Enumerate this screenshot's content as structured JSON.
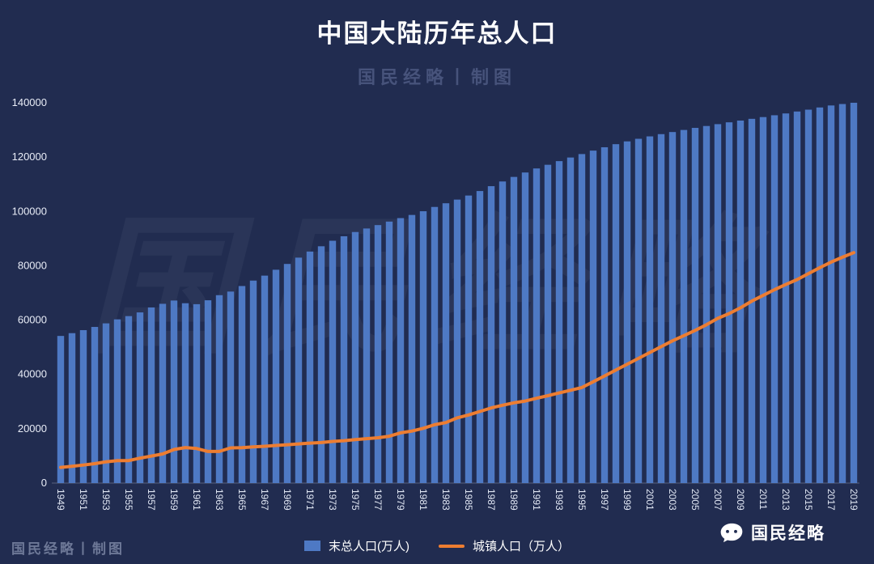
{
  "title": "中国大陆历年总人口",
  "subtitle": "国民经略丨制图",
  "watermark": {
    "big": "国民经略",
    "bottom_left": "国民经略丨制图"
  },
  "footer": {
    "brand": "国民经略"
  },
  "legend": {
    "bar_label": "末总人口(万人)",
    "line_label": "城镇人口（万人）"
  },
  "colors": {
    "background": "#212c50",
    "bar": "#4e79c4",
    "line": "#ed7d31",
    "text": "#ffffff",
    "subtitle": "#47537b"
  },
  "chart_data": {
    "type": "bar",
    "title": "中国大陆历年总人口",
    "xlabel": "",
    "ylabel": "",
    "ylim": [
      0,
      140000
    ],
    "yticks": [
      0,
      20000,
      40000,
      60000,
      80000,
      100000,
      120000,
      140000
    ],
    "grid": false,
    "legend_position": "bottom",
    "x": [
      1949,
      1950,
      1951,
      1952,
      1953,
      1954,
      1955,
      1956,
      1957,
      1958,
      1959,
      1960,
      1961,
      1962,
      1963,
      1964,
      1965,
      1966,
      1967,
      1968,
      1969,
      1970,
      1971,
      1972,
      1973,
      1974,
      1975,
      1976,
      1977,
      1978,
      1979,
      1980,
      1981,
      1982,
      1983,
      1984,
      1985,
      1986,
      1987,
      1988,
      1989,
      1990,
      1991,
      1992,
      1993,
      1994,
      1995,
      1996,
      1997,
      1998,
      1999,
      2000,
      2001,
      2002,
      2003,
      2004,
      2005,
      2006,
      2007,
      2008,
      2009,
      2010,
      2011,
      2012,
      2013,
      2014,
      2015,
      2016,
      2017,
      2018,
      2019
    ],
    "series": [
      {
        "name": "末总人口(万人)",
        "type": "bar",
        "values": [
          54167,
          55196,
          56300,
          57482,
          58796,
          60266,
          61465,
          62828,
          64653,
          65994,
          67207,
          66207,
          65859,
          67295,
          69172,
          70499,
          72538,
          74542,
          76368,
          78534,
          80671,
          82992,
          85229,
          87177,
          89211,
          90859,
          92420,
          93717,
          94974,
          96259,
          97542,
          98705,
          100072,
          101654,
          103008,
          104357,
          105851,
          107507,
          109300,
          111026,
          112704,
          114333,
          115823,
          117171,
          118517,
          119850,
          121121,
          122389,
          123626,
          124761,
          125786,
          126743,
          127627,
          128453,
          129227,
          129988,
          130756,
          131448,
          132129,
          132802,
          133450,
          134091,
          134735,
          135404,
          136072,
          136782,
          137462,
          138271,
          139008,
          139538,
          140005
        ]
      },
      {
        "name": "城镇人口（万人）",
        "type": "line",
        "values": [
          5765,
          6169,
          6632,
          7163,
          7826,
          8249,
          8285,
          9185,
          9949,
          10721,
          12371,
          13073,
          12707,
          11659,
          11646,
          12950,
          13045,
          13313,
          13548,
          13838,
          14117,
          14424,
          14711,
          14935,
          15345,
          15595,
          16030,
          16341,
          16669,
          17245,
          18495,
          19140,
          20171,
          21480,
          22274,
          24017,
          25094,
          26366,
          27674,
          28661,
          29540,
          30195,
          31203,
          32175,
          33173,
          34169,
          35174,
          37304,
          39449,
          41608,
          43748,
          45906,
          48064,
          50212,
          52376,
          54283,
          56212,
          58288,
          60633,
          62403,
          64512,
          66978,
          69079,
          71182,
          73111,
          74916,
          77116,
          79298,
          81347,
          83137,
          84843
        ]
      }
    ]
  }
}
